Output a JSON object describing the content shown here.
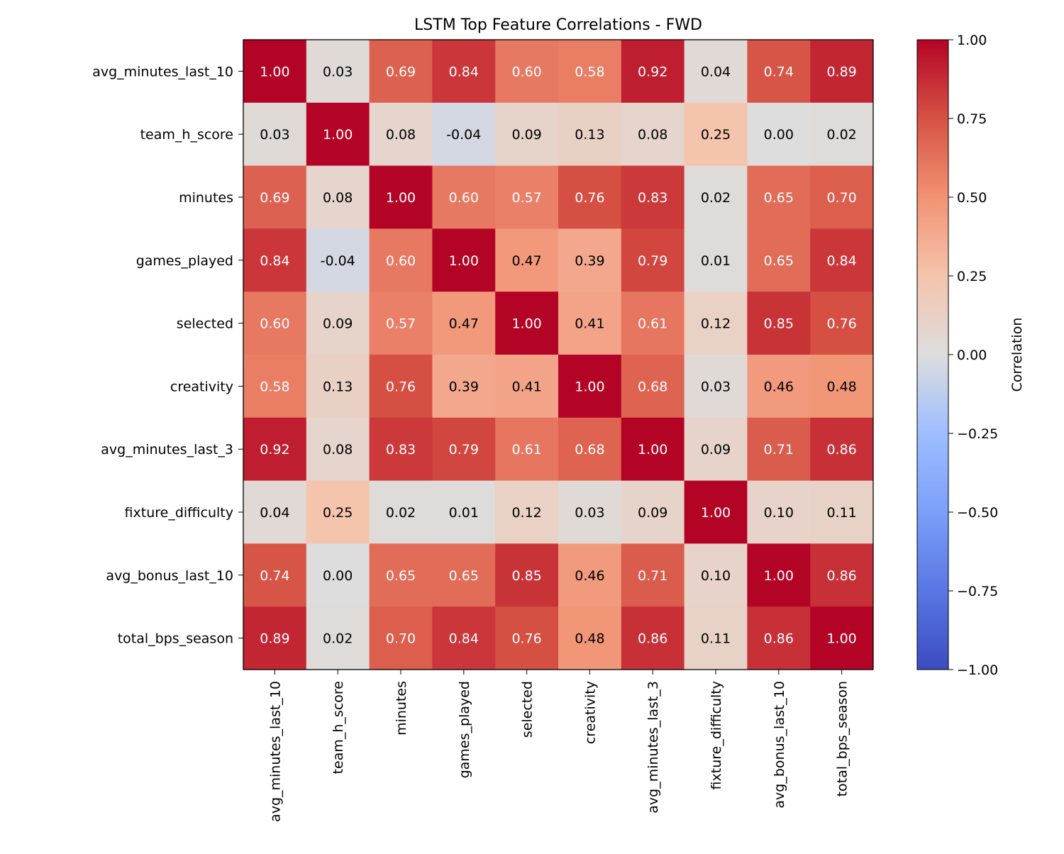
{
  "chart_data": {
    "type": "heatmap",
    "title": "LSTM Top Feature Correlations - FWD",
    "xlabel": "",
    "ylabel": "",
    "rows": [
      "avg_minutes_last_10",
      "team_h_score",
      "minutes",
      "games_played",
      "selected",
      "creativity",
      "avg_minutes_last_3",
      "fixture_difficulty",
      "avg_bonus_last_10",
      "total_bps_season"
    ],
    "columns": [
      "avg_minutes_last_10",
      "team_h_score",
      "minutes",
      "games_played",
      "selected",
      "creativity",
      "avg_minutes_last_3",
      "fixture_difficulty",
      "avg_bonus_last_10",
      "total_bps_season"
    ],
    "values": [
      [
        1.0,
        0.03,
        0.69,
        0.84,
        0.6,
        0.58,
        0.92,
        0.04,
        0.74,
        0.89
      ],
      [
        0.03,
        1.0,
        0.08,
        -0.04,
        0.09,
        0.13,
        0.08,
        0.25,
        0.0,
        0.02
      ],
      [
        0.69,
        0.08,
        1.0,
        0.6,
        0.57,
        0.76,
        0.83,
        0.02,
        0.65,
        0.7
      ],
      [
        0.84,
        -0.04,
        0.6,
        1.0,
        0.47,
        0.39,
        0.79,
        0.01,
        0.65,
        0.84
      ],
      [
        0.6,
        0.09,
        0.57,
        0.47,
        1.0,
        0.41,
        0.61,
        0.12,
        0.85,
        0.76
      ],
      [
        0.58,
        0.13,
        0.76,
        0.39,
        0.41,
        1.0,
        0.68,
        0.03,
        0.46,
        0.48
      ],
      [
        0.92,
        0.08,
        0.83,
        0.79,
        0.61,
        0.68,
        1.0,
        0.09,
        0.71,
        0.86
      ],
      [
        0.04,
        0.25,
        0.02,
        0.01,
        0.12,
        0.03,
        0.09,
        1.0,
        0.1,
        0.11
      ],
      [
        0.74,
        0.0,
        0.65,
        0.65,
        0.85,
        0.46,
        0.71,
        0.1,
        1.0,
        0.86
      ],
      [
        0.89,
        0.02,
        0.7,
        0.84,
        0.76,
        0.48,
        0.86,
        0.11,
        0.86,
        1.0
      ]
    ],
    "value_format": "0.00",
    "colormap": "coolwarm",
    "vmin": -1.0,
    "vmax": 1.0,
    "colorbar": {
      "label": "Correlation",
      "ticks": [
        1.0,
        0.75,
        0.5,
        0.25,
        0.0,
        -0.25,
        -0.5,
        -0.75,
        -1.0
      ],
      "tick_labels": [
        "1.00",
        "0.75",
        "0.50",
        "0.25",
        "0.00",
        "−0.25",
        "−0.50",
        "−0.75",
        "−1.00"
      ],
      "placement": "right"
    },
    "grid": false
  }
}
